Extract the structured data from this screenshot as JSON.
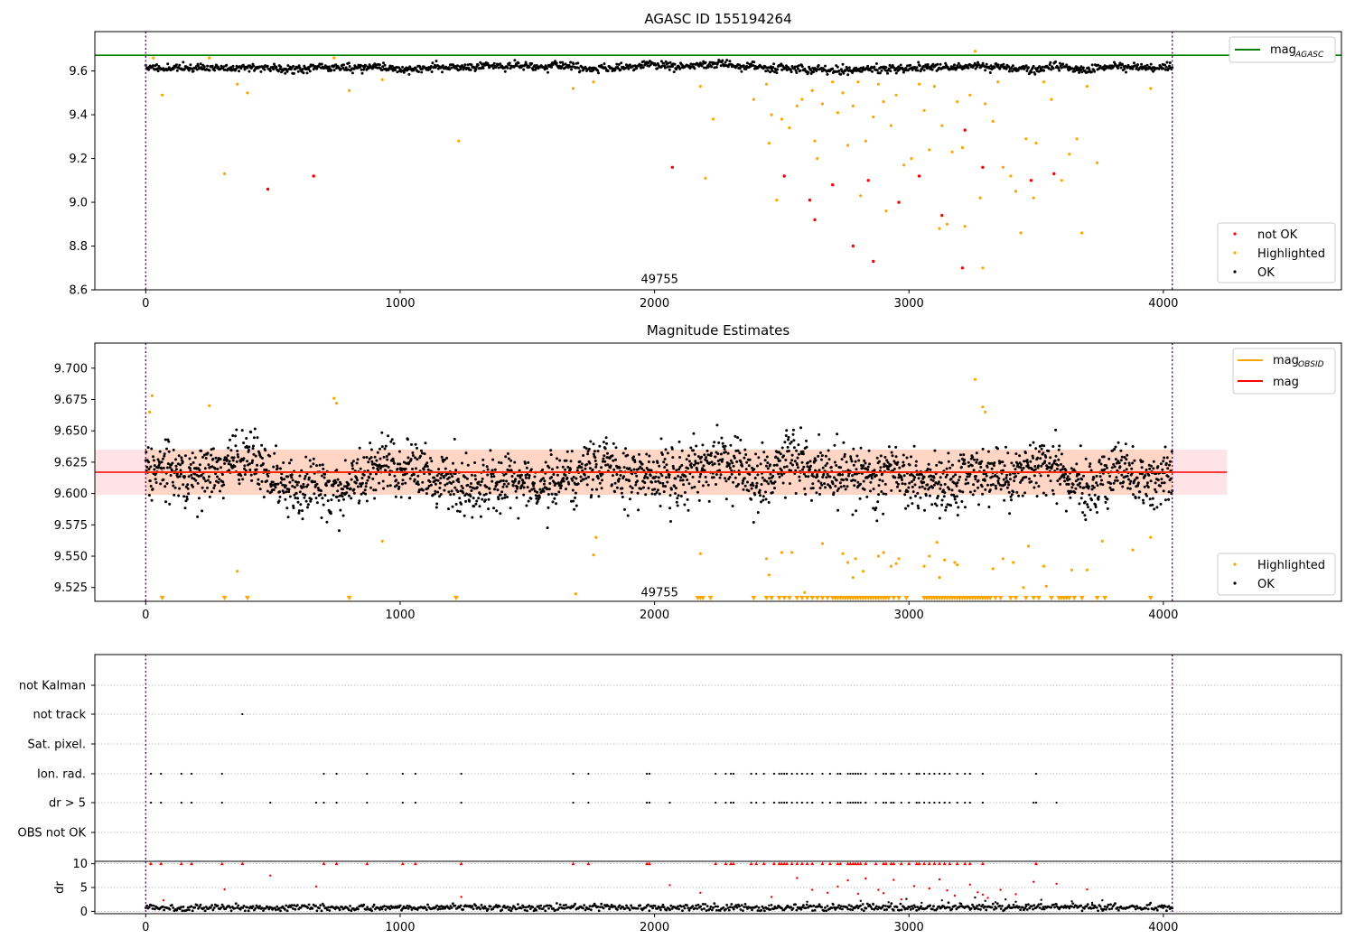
{
  "chart_data": [
    {
      "type": "scatter",
      "title": "AGASC ID 155194264",
      "xlim": [
        -200,
        4700
      ],
      "ylim": [
        8.6,
        9.78
      ],
      "xticks": [
        0,
        1000,
        2000,
        3000,
        4000
      ],
      "xtick_labels": [
        "0",
        "1000",
        "2000",
        "3000",
        "4000"
      ],
      "yticks": [
        8.6,
        8.8,
        9.0,
        9.2,
        9.4,
        9.6
      ],
      "ytick_labels": [
        "8.6",
        "8.8",
        "9.0",
        "9.2",
        "9.4",
        "9.6"
      ],
      "vlines": [
        0,
        4035
      ],
      "hline": {
        "name": "mag_AGASC",
        "value": 9.672,
        "color": "#008000"
      },
      "annotation": {
        "text": "49755",
        "x": 2020,
        "y": 8.63
      },
      "ok_band": {
        "center": 9.615,
        "x_range": [
          0,
          4035
        ],
        "n": 1400,
        "seed": 11
      },
      "highlighted": [
        [
          30,
          9.66
        ],
        [
          65,
          9.49
        ],
        [
          250,
          9.66
        ],
        [
          310,
          9.13
        ],
        [
          360,
          9.54
        ],
        [
          400,
          9.5
        ],
        [
          740,
          9.66
        ],
        [
          800,
          9.51
        ],
        [
          930,
          9.56
        ],
        [
          1230,
          9.28
        ],
        [
          1680,
          9.52
        ],
        [
          1760,
          9.55
        ],
        [
          2180,
          9.53
        ],
        [
          2200,
          9.11
        ],
        [
          2230,
          9.38
        ],
        [
          2390,
          9.47
        ],
        [
          2440,
          9.54
        ],
        [
          2450,
          9.27
        ],
        [
          2460,
          9.4
        ],
        [
          2480,
          9.01
        ],
        [
          2500,
          9.38
        ],
        [
          2530,
          9.34
        ],
        [
          2560,
          9.44
        ],
        [
          2580,
          9.47
        ],
        [
          2620,
          9.51
        ],
        [
          2630,
          9.28
        ],
        [
          2640,
          9.2
        ],
        [
          2660,
          9.45
        ],
        [
          2700,
          9.55
        ],
        [
          2720,
          9.41
        ],
        [
          2740,
          9.5
        ],
        [
          2760,
          9.26
        ],
        [
          2780,
          9.44
        ],
        [
          2800,
          9.55
        ],
        [
          2810,
          9.03
        ],
        [
          2830,
          9.28
        ],
        [
          2860,
          9.39
        ],
        [
          2880,
          9.54
        ],
        [
          2900,
          9.46
        ],
        [
          2910,
          8.96
        ],
        [
          2930,
          9.35
        ],
        [
          2950,
          9.49
        ],
        [
          2980,
          9.17
        ],
        [
          3010,
          9.2
        ],
        [
          3040,
          9.54
        ],
        [
          3060,
          9.42
        ],
        [
          3080,
          9.24
        ],
        [
          3100,
          9.53
        ],
        [
          3120,
          8.88
        ],
        [
          3130,
          9.35
        ],
        [
          3150,
          8.9
        ],
        [
          3170,
          9.23
        ],
        [
          3190,
          9.46
        ],
        [
          3210,
          9.25
        ],
        [
          3220,
          8.89
        ],
        [
          3240,
          9.49
        ],
        [
          3260,
          9.69
        ],
        [
          3280,
          9.02
        ],
        [
          3290,
          8.7
        ],
        [
          3300,
          9.45
        ],
        [
          3330,
          9.37
        ],
        [
          3350,
          9.55
        ],
        [
          3370,
          9.16
        ],
        [
          3400,
          9.12
        ],
        [
          3420,
          9.05
        ],
        [
          3440,
          8.86
        ],
        [
          3460,
          9.29
        ],
        [
          3490,
          9.02
        ],
        [
          3500,
          9.27
        ],
        [
          3530,
          9.55
        ],
        [
          3560,
          9.47
        ],
        [
          3600,
          9.1
        ],
        [
          3630,
          9.22
        ],
        [
          3660,
          9.29
        ],
        [
          3680,
          8.86
        ],
        [
          3700,
          9.53
        ],
        [
          3740,
          9.18
        ],
        [
          3950,
          9.52
        ]
      ],
      "not_ok": [
        [
          480,
          9.06
        ],
        [
          660,
          9.12
        ],
        [
          2070,
          9.16
        ],
        [
          2510,
          9.12
        ],
        [
          2610,
          9.01
        ],
        [
          2630,
          8.92
        ],
        [
          2700,
          9.08
        ],
        [
          2780,
          8.8
        ],
        [
          2840,
          9.1
        ],
        [
          2860,
          8.73
        ],
        [
          2960,
          9.0
        ],
        [
          3040,
          9.12
        ],
        [
          3130,
          8.94
        ],
        [
          3210,
          8.7
        ],
        [
          3220,
          9.33
        ],
        [
          3290,
          9.16
        ],
        [
          3480,
          9.1
        ],
        [
          3570,
          9.13
        ]
      ],
      "legend_lines": [
        {
          "label": "mag",
          "sub": "AGASC",
          "color": "#008000"
        }
      ],
      "legend_points": [
        {
          "label": "not OK",
          "color": "#ff0000"
        },
        {
          "label": "Highlighted",
          "color": "#ffa500"
        },
        {
          "label": "OK",
          "color": "#000000"
        }
      ]
    },
    {
      "type": "scatter",
      "title": "Magnitude Estimates",
      "xlim": [
        -200,
        4700
      ],
      "ylim": [
        9.514,
        9.72
      ],
      "xticks": [
        0,
        1000,
        2000,
        3000,
        4000
      ],
      "xtick_labels": [
        "0",
        "1000",
        "2000",
        "3000",
        "4000"
      ],
      "yticks": [
        9.525,
        9.55,
        9.575,
        9.6,
        9.625,
        9.65,
        9.675,
        9.7
      ],
      "ytick_labels": [
        "9.525",
        "9.550",
        "9.575",
        "9.600",
        "9.625",
        "9.650",
        "9.675",
        "9.700"
      ],
      "vlines": [
        0,
        4035
      ],
      "mag_line": {
        "name": "mag",
        "value": 9.617,
        "color": "#ff0000",
        "x_range": [
          -200,
          4250
        ]
      },
      "mag_band": {
        "low": 9.599,
        "high": 9.635,
        "x_range": [
          -200,
          4250
        ]
      },
      "obsid_band": {
        "low": 9.599,
        "high": 9.635,
        "x_range": [
          0,
          4035
        ]
      },
      "mag_obsid": {
        "value": 9.617,
        "x_range": [
          0,
          4035
        ]
      },
      "annotation": {
        "text": "49755",
        "x": 2020,
        "y": 9.518
      },
      "ok_band": {
        "center": 9.615,
        "x_range": [
          0,
          4035
        ],
        "n": 2500,
        "seed": 7
      },
      "highlighted": [
        [
          15,
          9.665
        ],
        [
          25,
          9.678
        ],
        [
          250,
          9.67
        ],
        [
          360,
          9.538
        ],
        [
          740,
          9.676
        ],
        [
          750,
          9.672
        ],
        [
          930,
          9.562
        ],
        [
          1690,
          9.52
        ],
        [
          1760,
          9.551
        ],
        [
          1770,
          9.565
        ],
        [
          2180,
          9.552
        ],
        [
          2440,
          9.548
        ],
        [
          2450,
          9.535
        ],
        [
          2500,
          9.553
        ],
        [
          2540,
          9.553
        ],
        [
          2590,
          9.521
        ],
        [
          2660,
          9.56
        ],
        [
          2740,
          9.552
        ],
        [
          2760,
          9.545
        ],
        [
          2780,
          9.533
        ],
        [
          2790,
          9.548
        ],
        [
          2820,
          9.538
        ],
        [
          2880,
          9.55
        ],
        [
          2900,
          9.553
        ],
        [
          2930,
          9.542
        ],
        [
          2950,
          9.544
        ],
        [
          2960,
          9.548
        ],
        [
          3060,
          9.542
        ],
        [
          3080,
          9.55
        ],
        [
          3110,
          9.561
        ],
        [
          3120,
          9.533
        ],
        [
          3140,
          9.547
        ],
        [
          3180,
          9.545
        ],
        [
          3190,
          9.543
        ],
        [
          3260,
          9.691
        ],
        [
          3290,
          9.669
        ],
        [
          3300,
          9.665
        ],
        [
          3330,
          9.54
        ],
        [
          3370,
          9.548
        ],
        [
          3410,
          9.545
        ],
        [
          3450,
          9.525
        ],
        [
          3470,
          9.558
        ],
        [
          3530,
          9.542
        ],
        [
          3540,
          9.526
        ],
        [
          3640,
          9.539
        ],
        [
          3700,
          9.539
        ],
        [
          3760,
          9.562
        ],
        [
          3880,
          9.555
        ],
        [
          3950,
          9.565
        ]
      ],
      "clipped": [
        65,
        310,
        400,
        800,
        1220,
        2170,
        2180,
        2190,
        2220,
        2390,
        2440,
        2460,
        2490,
        2510,
        2530,
        2560,
        2580,
        2600,
        2620,
        2640,
        2660,
        2680,
        2700,
        2710,
        2720,
        2730,
        2740,
        2750,
        2760,
        2770,
        2780,
        2790,
        2800,
        2810,
        2820,
        2830,
        2840,
        2850,
        2860,
        2870,
        2880,
        2890,
        2900,
        2910,
        2920,
        2940,
        2960,
        2990,
        3060,
        3070,
        3080,
        3090,
        3100,
        3110,
        3120,
        3130,
        3140,
        3150,
        3160,
        3170,
        3180,
        3190,
        3200,
        3210,
        3220,
        3230,
        3240,
        3250,
        3260,
        3270,
        3280,
        3290,
        3300,
        3310,
        3320,
        3340,
        3360,
        3400,
        3420,
        3460,
        3490,
        3510,
        3560,
        3590,
        3600,
        3610,
        3620,
        3630,
        3650,
        3680,
        3740,
        3770,
        3950
      ],
      "legend_lines": [
        {
          "label": "mag",
          "sub": "OBSID",
          "color": "#ffa500"
        },
        {
          "label": "mag",
          "sub": "",
          "color": "#ff0000"
        }
      ],
      "legend_points": [
        {
          "label": "Highlighted",
          "color": "#ffa500"
        },
        {
          "label": "OK",
          "color": "#000000"
        }
      ]
    },
    {
      "type": "scatter",
      "title": "",
      "xlim": [
        -200,
        4700
      ],
      "categories": [
        "not Kalman",
        "not track",
        "Sat. pixel.",
        "Ion. rad.",
        "dr > 5",
        "OBS not OK"
      ],
      "vlines": [
        0,
        4035
      ],
      "flag_points": {
        "not track": [
          380
        ],
        "Ion. rad.": [
          20,
          60,
          140,
          180,
          300,
          700,
          750,
          870,
          1010,
          1060,
          1240,
          1680,
          1740,
          1970,
          1980,
          2240,
          2280,
          2300,
          2310,
          2380,
          2400,
          2430,
          2470,
          2490,
          2500,
          2510,
          2520,
          2540,
          2560,
          2580,
          2600,
          2620,
          2660,
          2690,
          2720,
          2730,
          2760,
          2770,
          2780,
          2790,
          2800,
          2810,
          2830,
          2870,
          2900,
          2910,
          2930,
          2940,
          2970,
          3000,
          3030,
          3040,
          3060,
          3080,
          3100,
          3120,
          3140,
          3160,
          3190,
          3220,
          3240,
          3290,
          3500
        ],
        "dr > 5": [
          20,
          60,
          140,
          180,
          300,
          490,
          670,
          700,
          750,
          870,
          1010,
          1060,
          1240,
          1680,
          1740,
          1970,
          1980,
          2060,
          2240,
          2280,
          2300,
          2310,
          2380,
          2400,
          2430,
          2470,
          2490,
          2500,
          2510,
          2520,
          2540,
          2560,
          2580,
          2600,
          2620,
          2660,
          2690,
          2720,
          2730,
          2760,
          2770,
          2780,
          2790,
          2800,
          2810,
          2830,
          2870,
          2900,
          2910,
          2930,
          2940,
          2970,
          3000,
          3030,
          3040,
          3060,
          3080,
          3100,
          3120,
          3140,
          3160,
          3190,
          3220,
          3240,
          3290,
          3490,
          3500,
          3580
        ]
      },
      "dr_panel": {
        "ylabel": "dr",
        "ylim": [
          -0.5,
          10.5
        ],
        "yticks": [
          0,
          5,
          10
        ],
        "ytick_labels": [
          "0",
          "5",
          "10"
        ],
        "baseline": {
          "center": 0.8,
          "x_range": [
            0,
            4035
          ],
          "n": 900,
          "seed": 5
        },
        "clipped": [
          20,
          60,
          140,
          180,
          300,
          380,
          700,
          750,
          870,
          1010,
          1060,
          1240,
          1680,
          1740,
          1970,
          1980,
          2240,
          2280,
          2300,
          2310,
          2380,
          2400,
          2430,
          2470,
          2490,
          2500,
          2510,
          2520,
          2540,
          2560,
          2580,
          2600,
          2620,
          2660,
          2690,
          2720,
          2730,
          2760,
          2770,
          2780,
          2790,
          2800,
          2810,
          2830,
          2870,
          2900,
          2910,
          2930,
          2940,
          2970,
          3000,
          3030,
          3040,
          3060,
          3080,
          3100,
          3120,
          3140,
          3160,
          3190,
          3220,
          3240,
          3290,
          3500
        ],
        "red_scatter": [
          [
            70,
            2.3
          ],
          [
            310,
            4.6
          ],
          [
            490,
            7.5
          ],
          [
            670,
            5.2
          ],
          [
            1240,
            3.0
          ],
          [
            2060,
            5.5
          ],
          [
            2180,
            3.9
          ],
          [
            2460,
            3.0
          ],
          [
            2560,
            7.0
          ],
          [
            2620,
            4.5
          ],
          [
            2680,
            3.9
          ],
          [
            2720,
            5.2
          ],
          [
            2760,
            6.5
          ],
          [
            2800,
            3.7
          ],
          [
            2830,
            6.9
          ],
          [
            2880,
            4.5
          ],
          [
            2900,
            3.8
          ],
          [
            2940,
            6.6
          ],
          [
            2970,
            2.5
          ],
          [
            3020,
            5.3
          ],
          [
            3080,
            4.8
          ],
          [
            3120,
            6.7
          ],
          [
            3150,
            4.4
          ],
          [
            3180,
            3.3
          ],
          [
            3240,
            5.6
          ],
          [
            3270,
            4.0
          ],
          [
            3290,
            3.5
          ],
          [
            3310,
            2.8
          ],
          [
            3360,
            4.5
          ],
          [
            3420,
            3.6
          ],
          [
            3490,
            6.2
          ],
          [
            3580,
            5.8
          ],
          [
            3700,
            4.6
          ]
        ],
        "black_scatter": [
          [
            2450,
            1.2
          ],
          [
            2600,
            2.0
          ],
          [
            2700,
            1.6
          ],
          [
            2810,
            2.2
          ],
          [
            2860,
            1.4
          ],
          [
            2920,
            1.9
          ],
          [
            2990,
            2.6
          ],
          [
            3050,
            1.8
          ],
          [
            3130,
            2.3
          ],
          [
            3200,
            1.7
          ],
          [
            3260,
            2.9
          ],
          [
            3300,
            2.2
          ],
          [
            3340,
            1.9
          ],
          [
            3380,
            2.5
          ],
          [
            3420,
            2.0
          ],
          [
            3460,
            1.4
          ],
          [
            3520,
            2.4
          ],
          [
            3580,
            1.5
          ],
          [
            3640,
            2.1
          ],
          [
            3720,
            1.8
          ],
          [
            3760,
            2.3
          ]
        ]
      }
    }
  ]
}
